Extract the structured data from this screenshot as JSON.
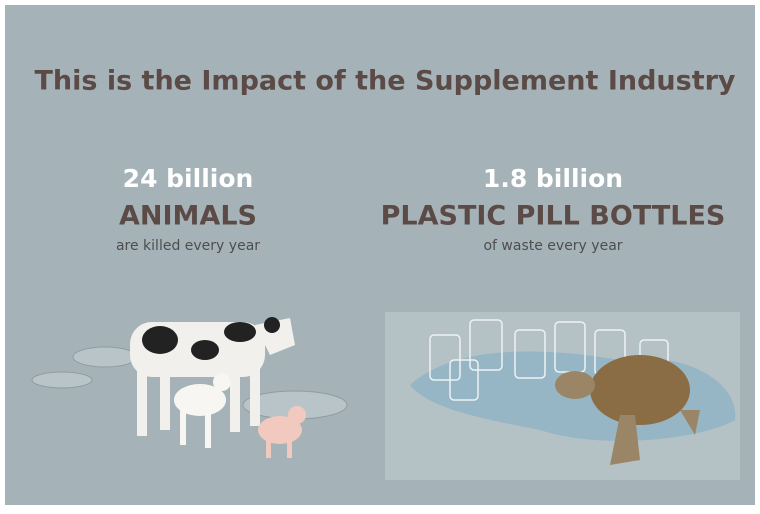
{
  "title": "This is the Impact of the Supplement Industry",
  "stats": [
    {
      "number": "24 billion",
      "label": "ANIMALS",
      "caption": "are killed every year"
    },
    {
      "number": "1.8 billion",
      "label": "PLASTIC PILL BOTTLES",
      "caption": "of waste every year"
    }
  ]
}
